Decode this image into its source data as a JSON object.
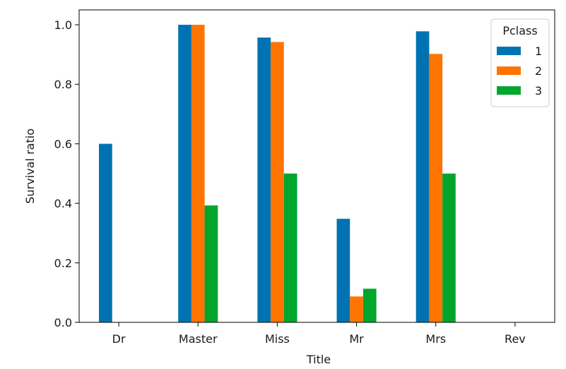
{
  "chart_data": {
    "type": "bar",
    "title": "",
    "xlabel": "Title",
    "ylabel": "Survival ratio",
    "categories": [
      "Dr",
      "Master",
      "Miss",
      "Mr",
      "Mrs",
      "Rev"
    ],
    "series": [
      {
        "name": "1",
        "color": "#0072b2",
        "values": [
          0.6,
          1.0,
          0.957,
          0.348,
          0.978,
          0.0
        ]
      },
      {
        "name": "2",
        "color": "#ff7400",
        "values": [
          0.0,
          1.0,
          0.942,
          0.087,
          0.902,
          0.0
        ]
      },
      {
        "name": "3",
        "color": "#00a62c",
        "values": [
          0.0,
          0.393,
          0.5,
          0.113,
          0.5,
          0.0
        ]
      }
    ],
    "ylim": [
      0.0,
      1.05
    ],
    "yticks": [
      0.0,
      0.2,
      0.4,
      0.6,
      0.8,
      1.0
    ],
    "ytick_labels": [
      "0.0",
      "0.2",
      "0.4",
      "0.6",
      "0.8",
      "1.0"
    ],
    "grid": false,
    "legend": {
      "title": "Pclass",
      "placement": "top-right"
    }
  }
}
